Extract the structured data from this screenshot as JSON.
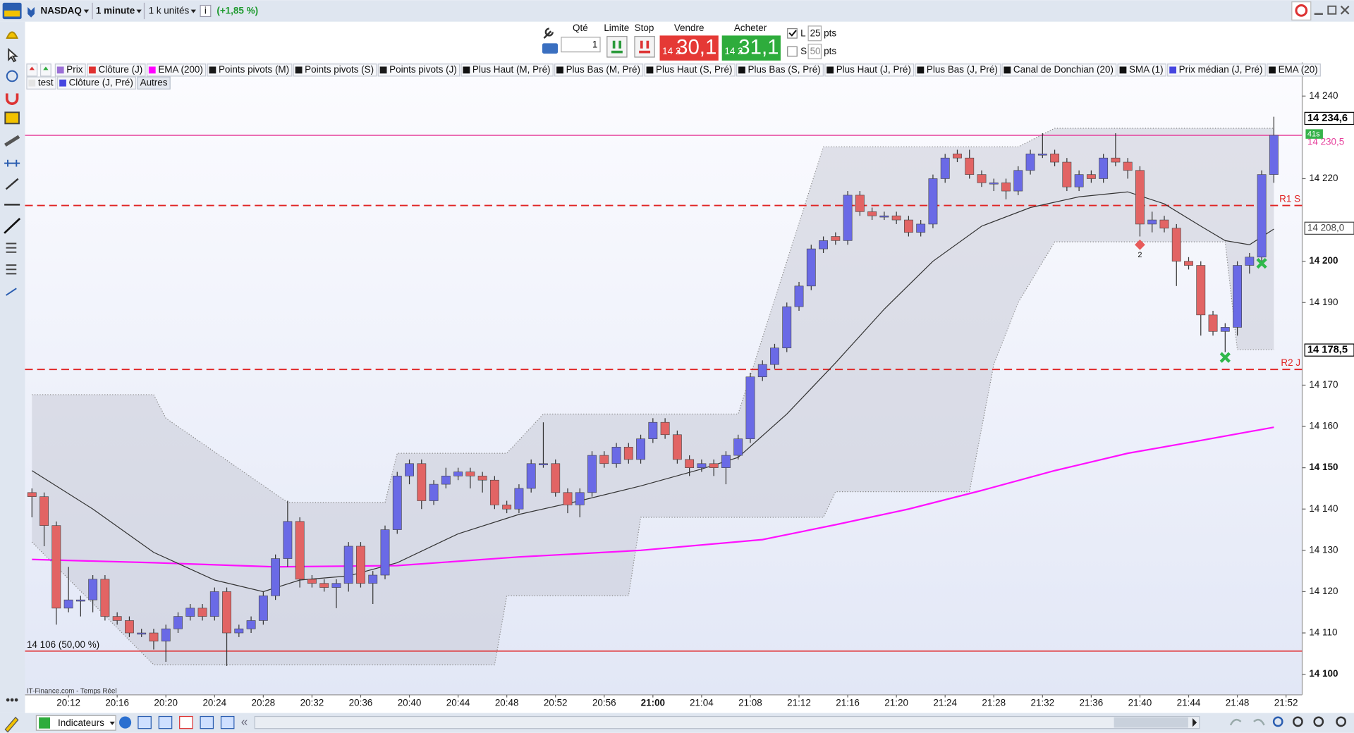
{
  "toolbar": {
    "instrument": "NASDAQ",
    "interval": "1 minute",
    "size": "1 k unités",
    "change": "(+1,85 %)"
  },
  "order_panel": {
    "qty_label": "Qté",
    "qty": 1,
    "limit": "Limite",
    "stop": "Stop",
    "sell_label": "Vendre",
    "sell_prefix": "14 2",
    "sell_price": "30,1",
    "buy_label": "Acheter",
    "buy_prefix": "14 2",
    "buy_price": "31,1",
    "long_label": "L",
    "long_pts": 25,
    "short_label": "S",
    "short_pts": 50,
    "pts_label": "pts"
  },
  "legend": {
    "items": [
      {
        "name": "Prix",
        "color": "#9b6fd6"
      },
      {
        "name": "Clôture (J)",
        "color": "#e03030"
      },
      {
        "name": "EMA (200)",
        "color": "#ff00ff"
      },
      {
        "name": "Points pivots (M)",
        "color": "#1a1a1a"
      },
      {
        "name": "Points pivots (S)",
        "color": "#1a1a1a"
      },
      {
        "name": "Points pivots (J)",
        "color": "#1a1a1a"
      },
      {
        "name": "Plus Haut (M, Pré)",
        "color": "#111111"
      },
      {
        "name": "Plus Bas (M, Pré)",
        "color": "#111111"
      },
      {
        "name": "Plus Haut (S, Pré)",
        "color": "#111111"
      },
      {
        "name": "Plus Bas (S, Pré)",
        "color": "#111111"
      },
      {
        "name": "Plus Haut (J, Pré)",
        "color": "#111111"
      },
      {
        "name": "Plus Bas (J, Pré)",
        "color": "#111111"
      },
      {
        "name": "Canal de Donchian (20)",
        "color": "#111111"
      },
      {
        "name": "SMA (1)",
        "color": "#111111"
      },
      {
        "name": "Prix médian (J, Pré)",
        "color": "#4646e0"
      },
      {
        "name": "EMA (20)",
        "color": "#111111"
      }
    ],
    "items2": [
      {
        "name": "test",
        "color": "#e4e4e4"
      },
      {
        "name": "Clôture (J, Pré)",
        "color": "#4646e0"
      }
    ],
    "more": "Autres"
  },
  "bottom_bar": {
    "source": "IT-Finance.com - Temps Réel",
    "indicators": "Indicateurs"
  },
  "chart_data": {
    "type": "candlestick",
    "categories": [
      null,
      null,
      null,
      "20:12",
      null,
      null,
      null,
      "20:16",
      null,
      null,
      null,
      "20:20",
      null,
      null,
      null,
      "20:24",
      null,
      null,
      null,
      "20:28",
      null,
      null,
      null,
      "20:32",
      null,
      null,
      null,
      "20:36",
      null,
      null,
      null,
      "20:40",
      null,
      null,
      null,
      "20:44",
      null,
      null,
      null,
      "20:48",
      null,
      null,
      null,
      "20:52",
      null,
      null,
      null,
      "20:56",
      null,
      null,
      null,
      "21:00",
      null,
      null,
      null,
      "21:04",
      null,
      null,
      null,
      "21:08",
      null,
      null,
      null,
      "21:12",
      null,
      null,
      null,
      "21:16",
      null,
      null,
      null,
      "21:20",
      null,
      null,
      null,
      "21:24",
      null,
      null,
      null,
      "21:28",
      null,
      null,
      null,
      "21:32",
      null,
      null,
      null,
      "21:36",
      null,
      null,
      null,
      "21:40",
      null,
      null,
      null,
      "21:44",
      null,
      null,
      null,
      "21:48",
      null,
      null,
      null,
      "21:52"
    ],
    "open": [
      14144,
      14143,
      14136,
      14116,
      14118,
      14118,
      14123,
      14114,
      14113,
      14110,
      14110,
      14108,
      14111,
      14114,
      14116,
      14114,
      14120,
      14110,
      14111,
      14113,
      14119,
      14128,
      14137,
      14123,
      14122,
      14121,
      14122,
      14131,
      14122,
      14124,
      14135,
      14148,
      14151,
      14142,
      14146,
      14148,
      14149,
      14148,
      14147,
      14141,
      14140,
      14145,
      14151,
      14151,
      14144,
      14141,
      14144,
      14153,
      14151,
      14155,
      14152,
      14157,
      14161,
      14158,
      14152,
      14150,
      14151,
      14150,
      14153,
      14157,
      14172,
      14175,
      14179,
      14189,
      14194,
      14203,
      14206,
      14205,
      14216,
      14212,
      14211,
      14211,
      14210,
      14207,
      14209,
      14220,
      14226,
      14225,
      14221,
      14219,
      14219,
      14217,
      14222,
      14226,
      14226,
      14224,
      14218,
      14221,
      14220,
      14225,
      14224,
      14222,
      14209,
      14210,
      14208,
      14200,
      14199,
      14187,
      14183,
      14184,
      14199,
      14201,
      14221,
      null
    ],
    "high": [
      14145,
      14144,
      14137,
      14126,
      14119,
      14124,
      14124,
      14115,
      14114,
      14111,
      14111,
      14112,
      14115,
      14117,
      14117,
      14121,
      14121,
      14112,
      14114,
      14120,
      14129,
      14142,
      14138,
      14124,
      14123,
      14123,
      14132,
      14132,
      14125,
      14136,
      14149,
      14152,
      14152,
      14147,
      14150,
      14150,
      14150,
      14149,
      14148,
      14142,
      14146,
      14152,
      14161,
      14152,
      14145,
      14145,
      14154,
      14154,
      14156,
      14156,
      14158,
      14162,
      14162,
      14159,
      14153,
      14152,
      14152,
      14154,
      14158,
      14173,
      14176,
      14180,
      14190,
      14195,
      14204,
      14206,
      14207,
      14217,
      14217,
      14213,
      14212,
      14212,
      14211,
      14210,
      14221,
      14226,
      14227,
      14227,
      14222,
      14220,
      14220,
      14223,
      14227,
      14231,
      14227,
      14225,
      14222,
      14222,
      14226,
      14231,
      14225,
      14223,
      14212,
      14211,
      14209,
      14201,
      14200,
      14188,
      14185,
      14200,
      14202,
      14222,
      14235,
      null
    ],
    "low": [
      14138,
      14131,
      14112,
      14115,
      14114,
      14115,
      14113,
      14112,
      14109,
      14109,
      14106,
      14103,
      14110,
      14113,
      14113,
      14113,
      14102,
      14109,
      14110,
      14112,
      14118,
      14126,
      14121,
      14121,
      14120,
      14116,
      14120,
      14121,
      14117,
      14123,
      14134,
      14146,
      14140,
      14141,
      14145,
      14147,
      14145,
      14144,
      14140,
      14139,
      14139,
      14144,
      14150,
      14143,
      14139,
      14138,
      14143,
      14150,
      14150,
      14151,
      14151,
      14156,
      14157,
      14151,
      14148,
      14149,
      14148,
      14146,
      14152,
      14156,
      14171,
      14174,
      14178,
      14188,
      14193,
      14202,
      14204,
      14204,
      14211,
      14210,
      14210,
      14209,
      14206,
      14206,
      14208,
      14219,
      14224,
      14220,
      14218,
      14217,
      14215,
      14216,
      14221,
      14225,
      14223,
      14217,
      14217,
      14219,
      14219,
      14223,
      14220,
      14206,
      14207,
      14207,
      14194,
      14198,
      14182,
      14182,
      14178,
      14182,
      14197,
      14200,
      14219,
      null
    ],
    "close": [
      14143,
      14136,
      14116,
      14118,
      14118,
      14123,
      14114,
      14113,
      14110,
      14110,
      14108,
      14111,
      14114,
      14116,
      14114,
      14120,
      14110,
      14111,
      14113,
      14119,
      14128,
      14137,
      14123,
      14122,
      14121,
      14122,
      14131,
      14122,
      14124,
      14135,
      14148,
      14151,
      14142,
      14146,
      14148,
      14149,
      14148,
      14147,
      14141,
      14140,
      14145,
      14151,
      14151,
      14144,
      14141,
      14144,
      14153,
      14151,
      14155,
      14152,
      14157,
      14161,
      14158,
      14152,
      14150,
      14151,
      14150,
      14153,
      14157,
      14172,
      14175,
      14179,
      14189,
      14194,
      14203,
      14205,
      14205,
      14216,
      14212,
      14211,
      14211,
      14210,
      14207,
      14209,
      14220,
      14225,
      14225,
      14221,
      14219,
      14219,
      14217,
      14222,
      14226,
      14226,
      14224,
      14218,
      14221,
      14220,
      14225,
      14224,
      14222,
      14209,
      14210,
      14208,
      14200,
      14199,
      14187,
      14183,
      14184,
      14199,
      14201,
      14221,
      14230.5,
      null
    ],
    "up_color": "#6a6ae6",
    "down_color": "#e26464",
    "lines": [
      {
        "color": "#ff10ff",
        "x": [
          "20:09",
          "20:19",
          "20:29",
          "20:39",
          "20:49",
          "20:59",
          "21:09",
          "21:15",
          "21:21",
          "21:27",
          "21:33",
          "21:39",
          "21:45",
          "21:51"
        ],
        "values": [
          14127.8,
          14127,
          14126,
          14126.3,
          14128.4,
          14130,
          14132.6,
          14136.2,
          14140,
          14144.5,
          14149.3,
          14153.5,
          14156.6,
          14159.8
        ]
      },
      {
        "color": "#333333",
        "x": [
          "20:09",
          "20:14",
          "20:19",
          "20:24",
          "20:28",
          "20:31",
          "20:35",
          "20:39",
          "20:44",
          "20:49",
          "20:54",
          "20:59",
          "21:04",
          "21:07",
          "21:11",
          "21:15",
          "21:19",
          "21:23",
          "21:27",
          "21:31",
          "21:35",
          "21:39",
          "21:42",
          "21:45",
          "21:47",
          "21:49",
          "21:51"
        ],
        "values": [
          14149.3,
          14140,
          14129.5,
          14122.8,
          14120,
          14122.8,
          14123.8,
          14127,
          14134,
          14138.7,
          14142,
          14145.6,
          14149.7,
          14152.5,
          14163,
          14175.4,
          14188.4,
          14200,
          14208.5,
          14213,
          14215.6,
          14216.8,
          14213.9,
          14208.5,
          14205,
          14204,
          14207.8
        ]
      }
    ],
    "channel": {
      "x": [
        "20:09",
        "20:19",
        "20:20",
        "20:30",
        "20:38",
        "20:39",
        "20:47",
        "20:48",
        "20:51",
        "20:58",
        "20:59",
        "21:07",
        "21:14",
        "21:15",
        "21:17",
        "21:26",
        "21:28",
        "21:30",
        "21:33",
        "21:47",
        "21:48",
        "21:51"
      ],
      "upper": [
        14167.7,
        14167.7,
        14162,
        14141.6,
        14141.6,
        14153.5,
        14153.5,
        14153.5,
        14163,
        14163,
        14163,
        14163,
        14227.7,
        14227.7,
        14227.7,
        14227.7,
        14227.7,
        14227.7,
        14232.2,
        14232.2,
        14232.2,
        14232.2
      ],
      "lower": [
        14132,
        14102.3,
        14102.3,
        14102.3,
        14102.3,
        14102.3,
        14102.3,
        14119,
        14119,
        14119,
        14138,
        14138,
        14138,
        14144.2,
        14144.2,
        14144.2,
        14175,
        14190,
        14204.7,
        14204.7,
        14178.6,
        14178.6
      ],
      "color": "#c6c8d4"
    },
    "levels": [
      {
        "value": 14230.5,
        "color": "#e6409c",
        "dashed": false
      },
      {
        "value": 14213.5,
        "color": "#e02424",
        "dashed": true,
        "label": "R1 S"
      },
      {
        "value": 14173.8,
        "color": "#e02424",
        "dashed": true,
        "label": "R2 J"
      },
      {
        "value": 14105.6,
        "color": "#e01010",
        "dashed": false,
        "label": "14 106 (50,00 %)"
      }
    ],
    "signals": [
      {
        "x": "21:40",
        "value": 14204,
        "color": "#e85a5a",
        "shape": "diamond",
        "label": "2"
      },
      {
        "x": "21:47",
        "value": 14176.7,
        "color": "#2fb84a",
        "shape": "cross"
      },
      {
        "x": "21:50",
        "value": 14199.5,
        "color": "#2fb84a",
        "shape": "cross"
      }
    ],
    "price_labels": [
      {
        "value": 14234.6,
        "label": "14 234,6",
        "color": "#000000",
        "boxed": true
      },
      {
        "value": 14230.5,
        "label": "14 230,5",
        "color": "#e6409c",
        "boxed": false
      },
      {
        "value": 14208,
        "label": "14 208,0",
        "color": "#444444",
        "boxed": true
      },
      {
        "value": 14178.5,
        "label": "14 178,5",
        "color": "#000000",
        "boxed": true
      }
    ],
    "countdown": "41s",
    "ylim": [
      14095,
      14241.7
    ],
    "yticks": [
      {
        "value": 14240,
        "label": "14 240"
      },
      {
        "value": 14220,
        "label": "14 220"
      },
      {
        "value": 14200,
        "label": "14 200"
      },
      {
        "value": 14190,
        "label": "14 190"
      },
      {
        "value": 14170,
        "label": "14 170"
      },
      {
        "value": 14160,
        "label": "14 160"
      },
      {
        "value": 14150,
        "label": "14 150"
      },
      {
        "value": 14140,
        "label": "14 140"
      },
      {
        "value": 14130,
        "label": "14 130"
      },
      {
        "value": 14120,
        "label": "14 120"
      },
      {
        "value": 14110,
        "label": "14 110"
      },
      {
        "value": 14100,
        "label": "14 100"
      }
    ],
    "grid": false
  }
}
